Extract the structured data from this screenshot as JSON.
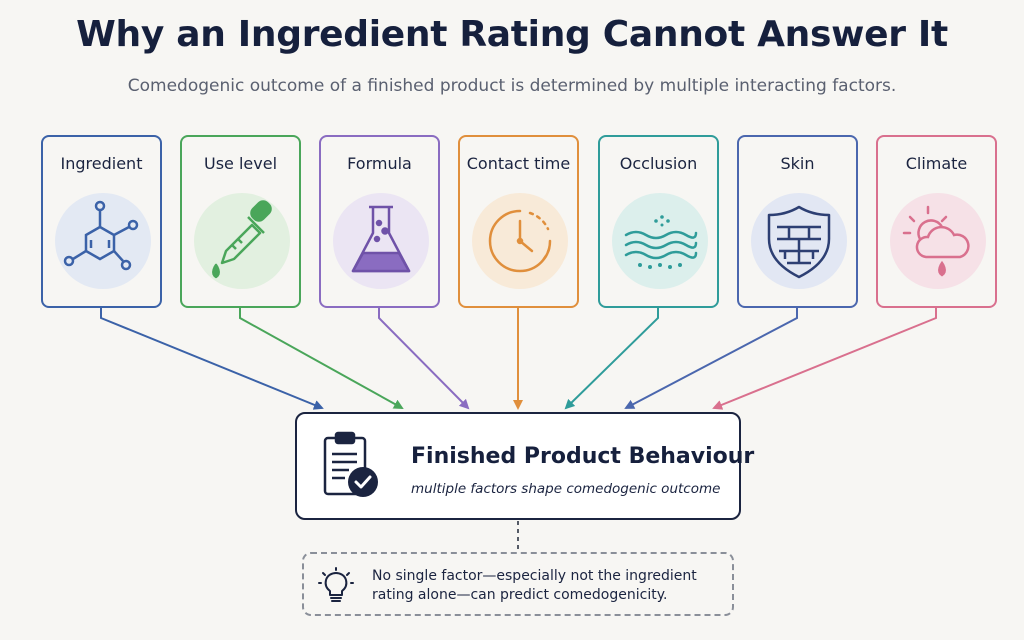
{
  "header": {
    "title": "Why an Ingredient Rating Cannot Answer It",
    "subtitle": "Comedogenic outcome of a finished product is determined by multiple interacting factors."
  },
  "factors": [
    {
      "label": "Ingredient",
      "icon": "molecule-icon",
      "color": "#3b62a8",
      "tint": "#e3e9f3"
    },
    {
      "label": "Use level",
      "icon": "dropper-icon",
      "color": "#4aa65a",
      "tint": "#e2f0e0"
    },
    {
      "label": "Formula",
      "icon": "flask-icon",
      "color": "#8a6cc1",
      "tint": "#ebe5f3"
    },
    {
      "label": "Contact time",
      "icon": "clock-icon",
      "color": "#e08f3c",
      "tint": "#f8ead8"
    },
    {
      "label": "Occlusion",
      "icon": "waves-icon",
      "color": "#2f9c9a",
      "tint": "#dcefec"
    },
    {
      "label": "Skin",
      "icon": "shield-barrier-icon",
      "color": "#4b67ae",
      "tint": "#e2e7f3"
    },
    {
      "label": "Climate",
      "icon": "weather-icon",
      "color": "#d9708e",
      "tint": "#f6e1e7"
    }
  ],
  "outcome": {
    "title": "Finished Product Behaviour",
    "subtitle": "multiple factors shape comedogenic outcome",
    "icon": "clipboard-check-icon",
    "color": "#1b2440"
  },
  "note": {
    "text": "No single factor—especially not the ingredient rating alone—can predict comedogenicity.",
    "icon": "lightbulb-icon"
  }
}
